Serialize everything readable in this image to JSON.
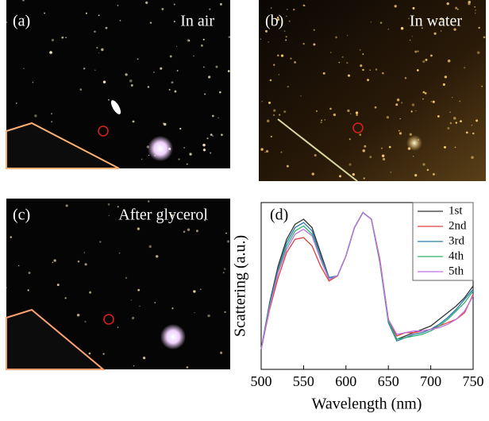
{
  "panels": [
    {
      "label": "(a)",
      "caption": "In air"
    },
    {
      "label": "(b)",
      "caption": "In water"
    },
    {
      "label": "(c)",
      "caption": "After glycerol"
    }
  ],
  "chart_data": {
    "type": "line",
    "panel_label": "(d)",
    "x_label": "Wavelength (nm)",
    "y_label": "Scattering (a.u.)",
    "x": [
      500,
      510,
      520,
      530,
      540,
      550,
      560,
      570,
      580,
      590,
      600,
      610,
      620,
      630,
      640,
      650,
      660,
      670,
      680,
      690,
      700,
      710,
      720,
      730,
      740,
      750
    ],
    "xlim": [
      500,
      750
    ],
    "xticks": [
      500,
      550,
      600,
      650,
      700,
      750
    ],
    "ylim": [
      0,
      1
    ],
    "series": [
      {
        "name": "1st",
        "color": "#333333",
        "values": [
          0.12,
          0.4,
          0.62,
          0.78,
          0.87,
          0.9,
          0.85,
          0.7,
          0.55,
          0.56,
          0.68,
          0.85,
          0.94,
          0.9,
          0.65,
          0.3,
          0.18,
          0.2,
          0.22,
          0.24,
          0.26,
          0.3,
          0.34,
          0.38,
          0.43,
          0.5
        ]
      },
      {
        "name": "2nd",
        "color": "#e04040",
        "values": [
          0.12,
          0.36,
          0.55,
          0.7,
          0.78,
          0.79,
          0.74,
          0.62,
          0.53,
          0.56,
          0.68,
          0.85,
          0.94,
          0.9,
          0.66,
          0.3,
          0.2,
          0.22,
          0.22,
          0.23,
          0.24,
          0.26,
          0.28,
          0.3,
          0.34,
          0.45
        ]
      },
      {
        "name": "3rd",
        "color": "#2a7ab0",
        "values": [
          0.12,
          0.39,
          0.6,
          0.76,
          0.85,
          0.88,
          0.83,
          0.68,
          0.55,
          0.56,
          0.68,
          0.85,
          0.94,
          0.9,
          0.64,
          0.28,
          0.17,
          0.19,
          0.21,
          0.22,
          0.24,
          0.27,
          0.31,
          0.36,
          0.42,
          0.48
        ]
      },
      {
        "name": "4th",
        "color": "#30b070",
        "values": [
          0.12,
          0.38,
          0.59,
          0.74,
          0.83,
          0.86,
          0.81,
          0.67,
          0.54,
          0.56,
          0.68,
          0.85,
          0.94,
          0.9,
          0.64,
          0.29,
          0.18,
          0.19,
          0.2,
          0.21,
          0.23,
          0.26,
          0.3,
          0.35,
          0.4,
          0.47
        ]
      },
      {
        "name": "5th",
        "color": "#c070e0",
        "values": [
          0.12,
          0.37,
          0.58,
          0.72,
          0.81,
          0.84,
          0.8,
          0.66,
          0.54,
          0.56,
          0.68,
          0.85,
          0.94,
          0.9,
          0.65,
          0.3,
          0.21,
          0.22,
          0.23,
          0.23,
          0.24,
          0.25,
          0.27,
          0.3,
          0.35,
          0.44
        ]
      }
    ]
  }
}
